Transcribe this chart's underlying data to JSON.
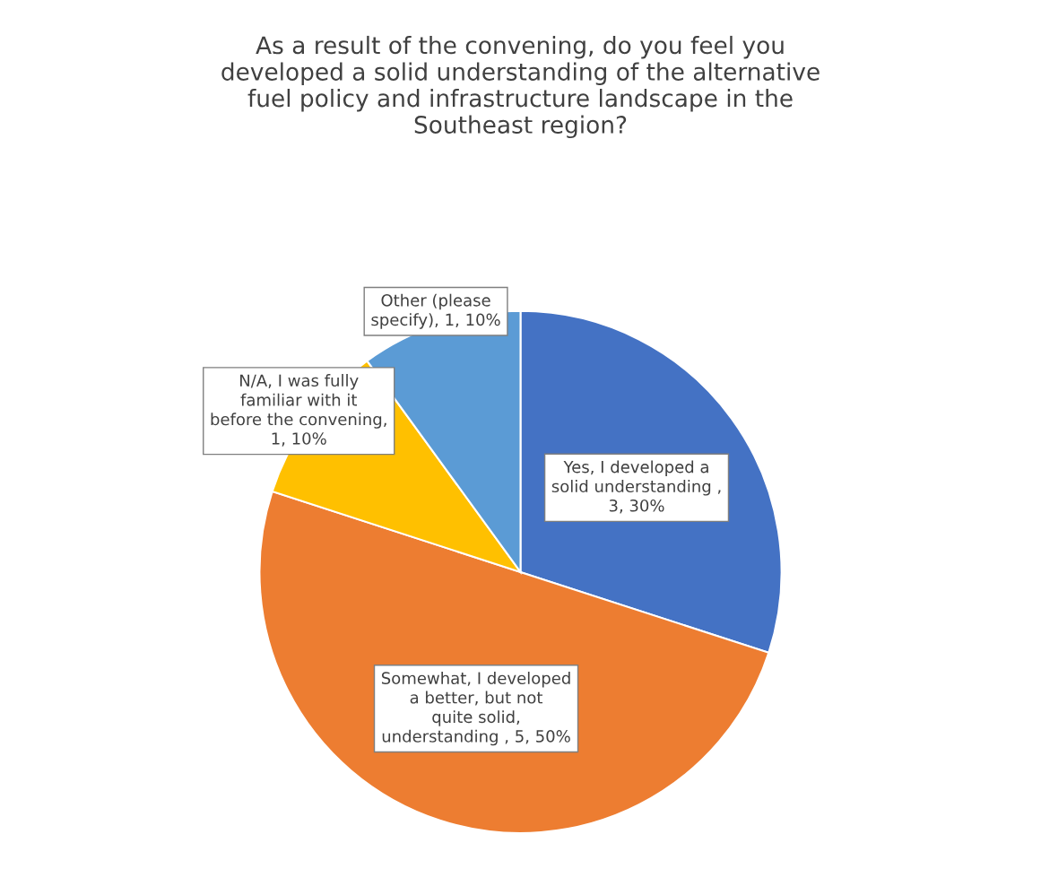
{
  "chart_data": {
    "type": "pie",
    "title": "As a result of the convening, do you feel you developed a solid understanding of the alternative fuel policy and infrastructure landscape in the Southeast region?",
    "categories": [
      "Yes, I developed a solid understanding",
      "Somewhat, I developed a better, but not quite solid, understanding",
      "N/A, I was fully familiar with it before the convening",
      "Other (please specify)"
    ],
    "values": [
      3,
      5,
      1,
      1
    ],
    "value_labels": [
      " , 3, 30%",
      " , 5, 50%",
      ", 1, 10%",
      ", 1, 10%"
    ],
    "colors": [
      "#4472c4",
      "#ed7d31",
      "#ffc000",
      "#5b9bd5"
    ],
    "legend": false
  }
}
